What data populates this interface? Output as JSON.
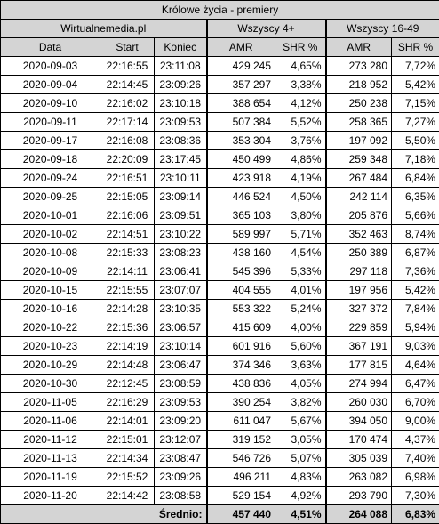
{
  "title": "Królowe życia - premiery",
  "source": "Wirtualnemedia.pl",
  "group_all": "Wszyscy 4+",
  "group_16_49": "Wszyscy 16-49",
  "headers": {
    "data": "Data",
    "start": "Start",
    "koniec": "Koniec",
    "amr": "AMR",
    "shr": "SHR %"
  },
  "rows": [
    {
      "data": "2020-09-03",
      "start": "22:16:55",
      "koniec": "23:11:08",
      "amr4": "429 245",
      "shr4": "4,65%",
      "amr16": "273 280",
      "shr16": "7,72%"
    },
    {
      "data": "2020-09-04",
      "start": "22:14:45",
      "koniec": "23:09:26",
      "amr4": "357 297",
      "shr4": "3,38%",
      "amr16": "218 952",
      "shr16": "5,42%"
    },
    {
      "data": "2020-09-10",
      "start": "22:16:02",
      "koniec": "23:10:18",
      "amr4": "388 654",
      "shr4": "4,12%",
      "amr16": "250 238",
      "shr16": "7,15%"
    },
    {
      "data": "2020-09-11",
      "start": "22:17:14",
      "koniec": "23:09:53",
      "amr4": "507 384",
      "shr4": "5,52%",
      "amr16": "258 365",
      "shr16": "7,27%"
    },
    {
      "data": "2020-09-17",
      "start": "22:16:08",
      "koniec": "23:08:36",
      "amr4": "353 304",
      "shr4": "3,76%",
      "amr16": "197 092",
      "shr16": "5,50%"
    },
    {
      "data": "2020-09-18",
      "start": "22:20:09",
      "koniec": "23:17:45",
      "amr4": "450 499",
      "shr4": "4,86%",
      "amr16": "259 348",
      "shr16": "7,18%"
    },
    {
      "data": "2020-09-24",
      "start": "22:16:51",
      "koniec": "23:10:11",
      "amr4": "423 918",
      "shr4": "4,19%",
      "amr16": "267 484",
      "shr16": "6,84%"
    },
    {
      "data": "2020-09-25",
      "start": "22:15:05",
      "koniec": "23:09:14",
      "amr4": "446 524",
      "shr4": "4,50%",
      "amr16": "242 114",
      "shr16": "6,35%"
    },
    {
      "data": "2020-10-01",
      "start": "22:16:06",
      "koniec": "23:09:51",
      "amr4": "365 103",
      "shr4": "3,80%",
      "amr16": "205 876",
      "shr16": "5,66%"
    },
    {
      "data": "2020-10-02",
      "start": "22:14:51",
      "koniec": "23:10:22",
      "amr4": "589 997",
      "shr4": "5,71%",
      "amr16": "352 463",
      "shr16": "8,74%"
    },
    {
      "data": "2020-10-08",
      "start": "22:15:33",
      "koniec": "23:08:23",
      "amr4": "438 160",
      "shr4": "4,54%",
      "amr16": "250 389",
      "shr16": "6,87%"
    },
    {
      "data": "2020-10-09",
      "start": "22:14:11",
      "koniec": "23:06:41",
      "amr4": "545 396",
      "shr4": "5,33%",
      "amr16": "297 118",
      "shr16": "7,36%"
    },
    {
      "data": "2020-10-15",
      "start": "22:15:55",
      "koniec": "23:07:07",
      "amr4": "404 555",
      "shr4": "4,01%",
      "amr16": "197 956",
      "shr16": "5,42%"
    },
    {
      "data": "2020-10-16",
      "start": "22:14:28",
      "koniec": "23:10:35",
      "amr4": "553 322",
      "shr4": "5,24%",
      "amr16": "327 372",
      "shr16": "7,84%"
    },
    {
      "data": "2020-10-22",
      "start": "22:15:36",
      "koniec": "23:06:57",
      "amr4": "415 609",
      "shr4": "4,00%",
      "amr16": "229 859",
      "shr16": "5,94%"
    },
    {
      "data": "2020-10-23",
      "start": "22:14:19",
      "koniec": "23:10:14",
      "amr4": "601 916",
      "shr4": "5,60%",
      "amr16": "367 191",
      "shr16": "9,03%"
    },
    {
      "data": "2020-10-29",
      "start": "22:14:48",
      "koniec": "23:06:47",
      "amr4": "374 346",
      "shr4": "3,63%",
      "amr16": "177 815",
      "shr16": "4,64%"
    },
    {
      "data": "2020-10-30",
      "start": "22:12:45",
      "koniec": "23:08:59",
      "amr4": "438 836",
      "shr4": "4,05%",
      "amr16": "274 994",
      "shr16": "6,47%"
    },
    {
      "data": "2020-11-05",
      "start": "22:16:29",
      "koniec": "23:09:53",
      "amr4": "390 254",
      "shr4": "3,82%",
      "amr16": "260 030",
      "shr16": "6,70%"
    },
    {
      "data": "2020-11-06",
      "start": "22:14:01",
      "koniec": "23:09:20",
      "amr4": "611 047",
      "shr4": "5,67%",
      "amr16": "394 050",
      "shr16": "9,00%"
    },
    {
      "data": "2020-11-12",
      "start": "22:15:01",
      "koniec": "23:12:07",
      "amr4": "319 152",
      "shr4": "3,05%",
      "amr16": "170 474",
      "shr16": "4,37%"
    },
    {
      "data": "2020-11-13",
      "start": "22:14:34",
      "koniec": "23:08:47",
      "amr4": "546 726",
      "shr4": "5,07%",
      "amr16": "305 039",
      "shr16": "7,40%"
    },
    {
      "data": "2020-11-19",
      "start": "22:15:52",
      "koniec": "23:09:26",
      "amr4": "496 211",
      "shr4": "4,83%",
      "amr16": "263 082",
      "shr16": "6,98%"
    },
    {
      "data": "2020-11-20",
      "start": "22:14:42",
      "koniec": "23:08:58",
      "amr4": "529 154",
      "shr4": "4,92%",
      "amr16": "293 790",
      "shr16": "7,30%"
    }
  ],
  "footer": {
    "label": "Średnio:",
    "amr4": "457 440",
    "shr4": "4,51%",
    "amr16": "264 088",
    "shr16": "6,83%"
  },
  "colors": {
    "header_bg": "#d4d4d4",
    "border": "#000000"
  }
}
